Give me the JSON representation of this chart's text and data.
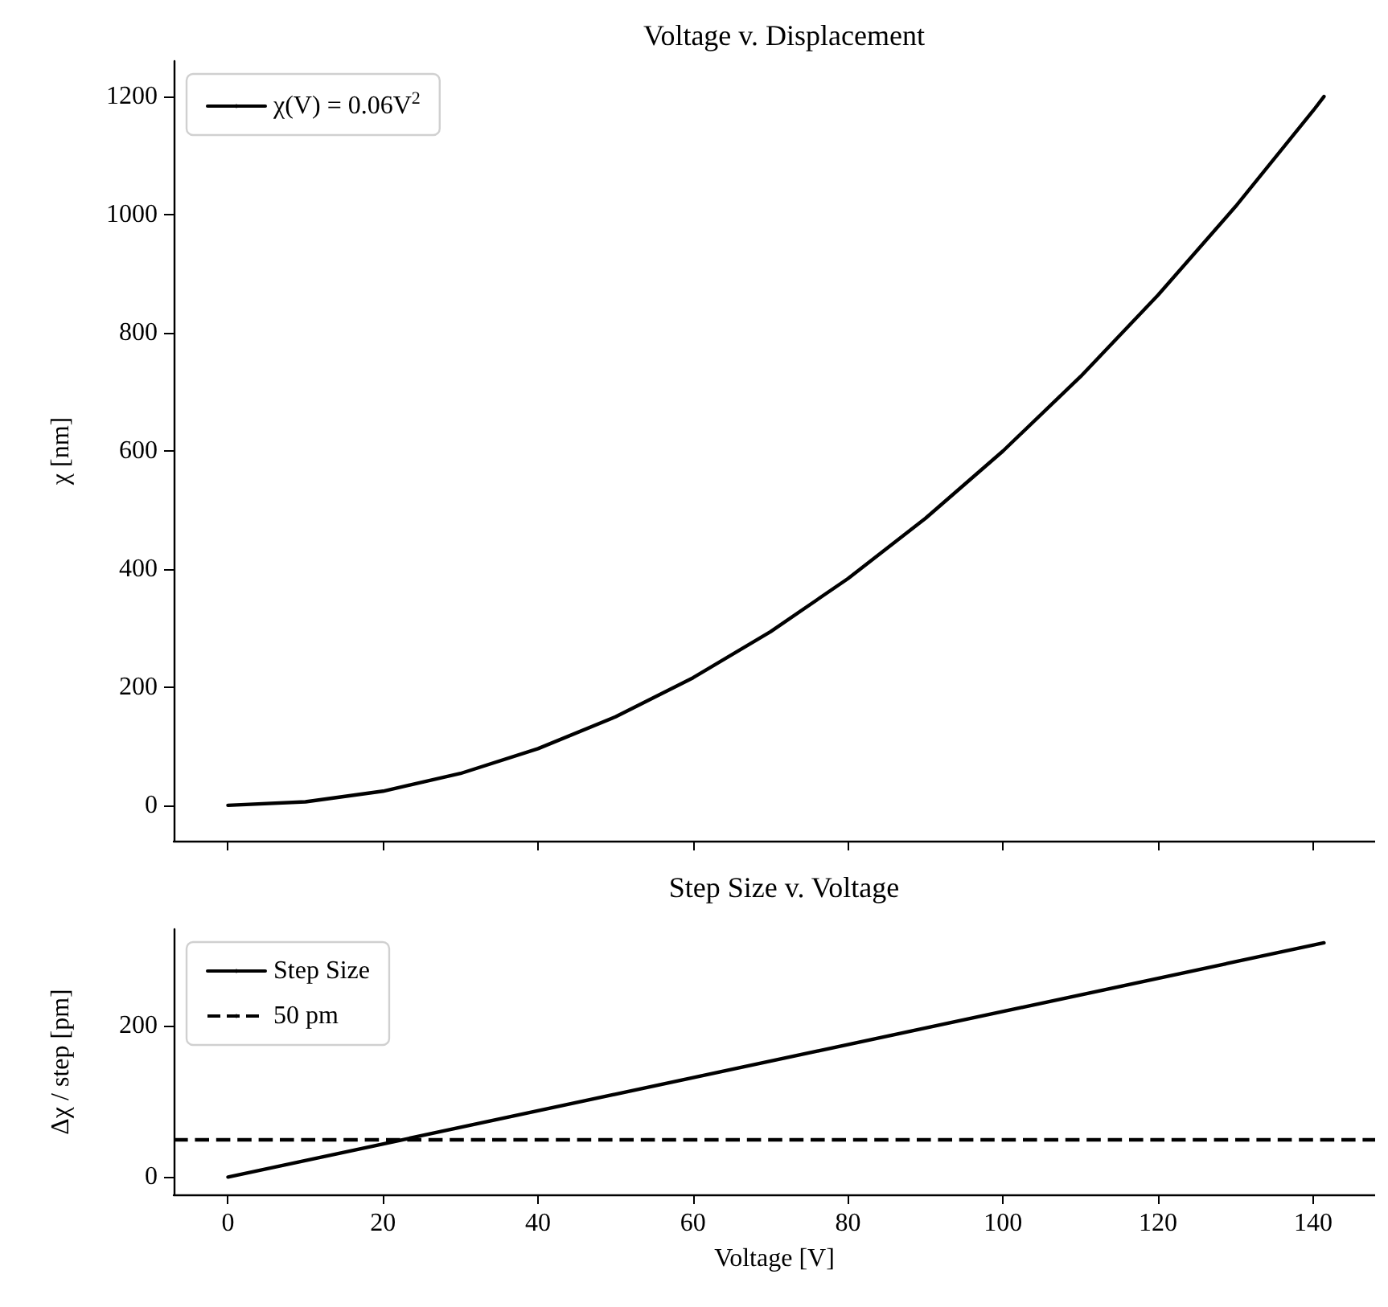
{
  "chart_data": [
    {
      "type": "line",
      "title": "Voltage v. Displacement",
      "ylabel": "χ [nm]",
      "x": [
        0,
        10,
        20,
        30,
        40,
        50,
        60,
        70,
        80,
        90,
        100,
        110,
        120,
        130,
        140,
        141.4
      ],
      "series": [
        {
          "name": "χ(V) = 0.06V$^{2}$",
          "color": "#000000",
          "values": [
            0,
            6,
            24,
            54,
            96,
            150,
            216,
            294,
            384,
            486,
            600,
            726,
            864,
            1014,
            1176,
            1200
          ]
        }
      ],
      "xlim": [
        -7,
        148
      ],
      "xticks": [
        0,
        20,
        40,
        60,
        80,
        100,
        120,
        140
      ],
      "ylim": [
        -60,
        1260
      ],
      "yticks": [
        0,
        200,
        400,
        600,
        800,
        1000,
        1200
      ],
      "tick_labels": "y",
      "legend": "top left",
      "grid": false,
      "marker": "none",
      "line_style": "solid"
    },
    {
      "type": "line",
      "title": "Step Size v. Voltage",
      "xlabel": "Voltage [V]",
      "ylabel": "Δχ / step [pm]",
      "x": [
        0,
        141.4
      ],
      "series": [
        {
          "name": "Step Size",
          "color": "#000000",
          "values": [
            0,
            310
          ]
        }
      ],
      "ref_lines": [
        {
          "axis": "y",
          "value": 50,
          "label": "50 pm",
          "color": "#000000",
          "line_style": "dashed"
        }
      ],
      "xlim": [
        -7,
        148
      ],
      "xticks": [
        0,
        20,
        40,
        60,
        80,
        100,
        120,
        140
      ],
      "ylim": [
        -23,
        328
      ],
      "yticks": [
        0,
        200
      ],
      "legend": "top left",
      "grid": false,
      "marker": "none",
      "line_style": "solid"
    }
  ]
}
